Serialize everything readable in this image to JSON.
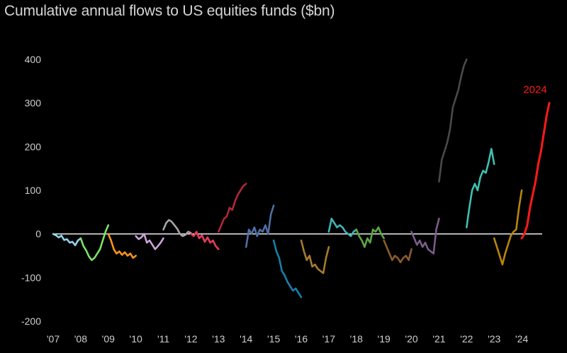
{
  "chart_data": {
    "type": "line",
    "title": "Cumulative annual flows to US equities funds ($bn)",
    "xlabel": "",
    "ylabel": "",
    "ylim": [
      -200,
      400
    ],
    "yticks": [
      400,
      300,
      200,
      100,
      0,
      -100,
      -200
    ],
    "xlim": [
      2007,
      2025
    ],
    "xtick_labels": [
      "'07",
      "'08",
      "'09",
      "'10",
      "'11",
      "'12",
      "'13",
      "'14",
      "'15",
      "'16",
      "'17",
      "'18",
      "'19",
      "'20",
      "'21",
      "'22",
      "'23",
      "'24"
    ],
    "grid": false,
    "highlight_label": "2024",
    "series": [
      {
        "name": "2007",
        "color": "#8fd3ee",
        "x": [
          0,
          0.1,
          0.2,
          0.3,
          0.4,
          0.5,
          0.6,
          0.7,
          0.8,
          0.9,
          1.0
        ],
        "values": [
          0,
          -3,
          -8,
          -4,
          -14,
          -12,
          -20,
          -18,
          -26,
          -15,
          -10
        ]
      },
      {
        "name": "2008",
        "color": "#7ee06a",
        "x": [
          0,
          0.1,
          0.2,
          0.3,
          0.4,
          0.5,
          0.6,
          0.7,
          0.8,
          0.9,
          1.0
        ],
        "values": [
          -10,
          -28,
          -38,
          -52,
          -60,
          -55,
          -45,
          -35,
          -15,
          5,
          20
        ]
      },
      {
        "name": "2009",
        "color": "#f7941d",
        "x": [
          0,
          0.1,
          0.2,
          0.3,
          0.4,
          0.5,
          0.6,
          0.7,
          0.8,
          0.9,
          1.0
        ],
        "values": [
          0,
          -15,
          -35,
          -45,
          -40,
          -48,
          -42,
          -50,
          -45,
          -55,
          -50
        ]
      },
      {
        "name": "2010",
        "color": "#c9a3d6",
        "x": [
          0,
          0.1,
          0.2,
          0.3,
          0.4,
          0.5,
          0.6,
          0.7,
          0.8,
          0.9,
          1.0
        ],
        "values": [
          -5,
          -12,
          -8,
          0,
          -20,
          -15,
          -25,
          -35,
          -28,
          -20,
          -10
        ]
      },
      {
        "name": "2011",
        "color": "#a6a6a6",
        "x": [
          0,
          0.1,
          0.2,
          0.3,
          0.4,
          0.5,
          0.6,
          0.7,
          0.8,
          0.9,
          1.0
        ],
        "values": [
          10,
          25,
          32,
          28,
          20,
          12,
          0,
          -5,
          -2,
          5,
          2
        ]
      },
      {
        "name": "2012",
        "color": "#e83a5a",
        "x": [
          0,
          0.1,
          0.2,
          0.3,
          0.4,
          0.5,
          0.6,
          0.7,
          0.8,
          0.9,
          1.0
        ],
        "values": [
          0,
          -5,
          5,
          -10,
          -3,
          -18,
          -8,
          -20,
          -15,
          -28,
          -35
        ]
      },
      {
        "name": "2013",
        "color": "#b0283a",
        "x": [
          0,
          0.1,
          0.2,
          0.3,
          0.4,
          0.5,
          0.6,
          0.7,
          0.8,
          0.9,
          1.0
        ],
        "values": [
          5,
          20,
          35,
          40,
          60,
          55,
          75,
          90,
          100,
          110,
          115
        ]
      },
      {
        "name": "2014",
        "color": "#4f6fa3",
        "x": [
          0,
          0.1,
          0.2,
          0.3,
          0.4,
          0.5,
          0.6,
          0.7,
          0.8,
          0.9,
          1.0
        ],
        "values": [
          -30,
          10,
          0,
          15,
          -5,
          10,
          5,
          20,
          0,
          45,
          65
        ]
      },
      {
        "name": "2015",
        "color": "#1a7fa8",
        "x": [
          0,
          0.1,
          0.2,
          0.3,
          0.4,
          0.5,
          0.6,
          0.7,
          0.8,
          0.9,
          1.0
        ],
        "values": [
          -15,
          -40,
          -55,
          -85,
          -95,
          -110,
          -120,
          -130,
          -125,
          -135,
          -145
        ]
      },
      {
        "name": "2016",
        "color": "#a67c2e",
        "x": [
          0,
          0.1,
          0.2,
          0.3,
          0.4,
          0.5,
          0.6,
          0.7,
          0.8,
          0.9,
          1.0
        ],
        "values": [
          -15,
          -40,
          -60,
          -50,
          -75,
          -70,
          -80,
          -85,
          -90,
          -55,
          -30
        ]
      },
      {
        "name": "2017",
        "color": "#3fb4b8",
        "x": [
          0,
          0.1,
          0.2,
          0.3,
          0.4,
          0.5,
          0.6,
          0.7,
          0.8,
          0.9,
          1.0
        ],
        "values": [
          5,
          35,
          25,
          15,
          20,
          15,
          5,
          0,
          -5,
          5,
          10
        ]
      },
      {
        "name": "2018",
        "color": "#5aa846",
        "x": [
          0,
          0.1,
          0.2,
          0.3,
          0.4,
          0.5,
          0.6,
          0.7,
          0.8,
          0.9,
          1.0
        ],
        "values": [
          10,
          -5,
          -15,
          -30,
          -10,
          -20,
          10,
          5,
          15,
          0,
          -10
        ]
      },
      {
        "name": "2019",
        "color": "#8c5a2b",
        "x": [
          0,
          0.1,
          0.2,
          0.3,
          0.4,
          0.5,
          0.6,
          0.7,
          0.8,
          0.9,
          1.0
        ],
        "values": [
          -15,
          -30,
          -45,
          -60,
          -50,
          -55,
          -65,
          -55,
          -50,
          -60,
          -35
        ]
      },
      {
        "name": "2020",
        "color": "#7a5c8a",
        "x": [
          0,
          0.1,
          0.2,
          0.3,
          0.4,
          0.5,
          0.6,
          0.7,
          0.8,
          0.9,
          1.0
        ],
        "values": [
          5,
          -10,
          -25,
          -15,
          -30,
          -20,
          -35,
          -40,
          -45,
          10,
          35
        ]
      },
      {
        "name": "2021",
        "color": "#4a4a4a",
        "x": [
          0,
          0.1,
          0.2,
          0.3,
          0.4,
          0.5,
          0.6,
          0.7,
          0.8,
          0.9,
          1.0
        ],
        "values": [
          120,
          170,
          190,
          210,
          240,
          290,
          310,
          330,
          360,
          385,
          400
        ]
      },
      {
        "name": "2022",
        "color": "#3fbfb0",
        "x": [
          0,
          0.1,
          0.2,
          0.3,
          0.4,
          0.5,
          0.6,
          0.7,
          0.8,
          0.9,
          1.0
        ],
        "values": [
          15,
          60,
          100,
          115,
          100,
          130,
          145,
          140,
          165,
          195,
          160
        ]
      },
      {
        "name": "2023",
        "color": "#b8860b",
        "x": [
          0,
          0.1,
          0.2,
          0.3,
          0.4,
          0.5,
          0.6,
          0.7,
          0.8,
          0.9,
          1.0
        ],
        "values": [
          -10,
          -30,
          -50,
          -70,
          -45,
          -25,
          -5,
          5,
          10,
          60,
          100
        ]
      },
      {
        "name": "2024",
        "color": "#ff1a1a",
        "x": [
          0,
          0.1,
          0.2,
          0.3,
          0.4,
          0.5,
          0.6,
          0.7,
          0.8,
          0.9,
          1.0
        ],
        "values": [
          -10,
          0,
          20,
          60,
          90,
          120,
          160,
          190,
          230,
          270,
          300
        ]
      }
    ]
  }
}
